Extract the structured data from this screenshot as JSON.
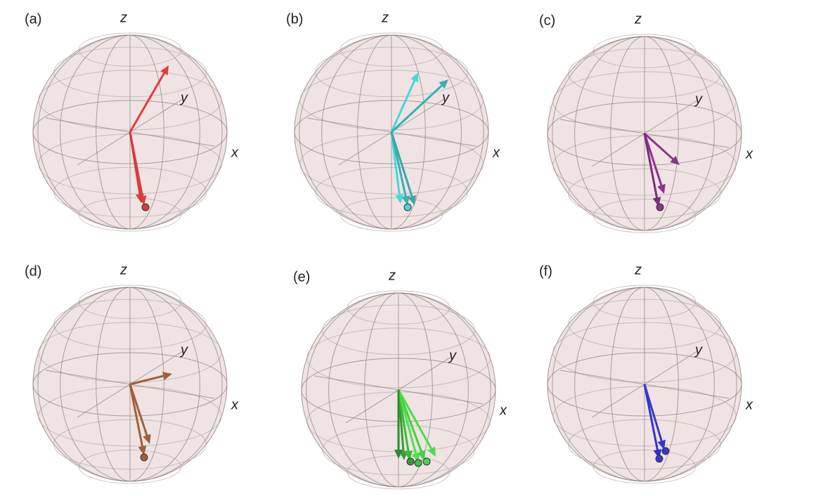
{
  "panels": [
    {
      "label": "(a)",
      "z": "z",
      "y": "y",
      "x": "x"
    },
    {
      "label": "(b)",
      "z": "z",
      "y": "y",
      "x": "x"
    },
    {
      "label": "(c)",
      "z": "z",
      "y": "y",
      "x": "x"
    },
    {
      "label": "(d)",
      "z": "z",
      "y": "y",
      "x": "x"
    },
    {
      "label": "(e)",
      "z": "z",
      "y": "y",
      "x": "x"
    },
    {
      "label": "(f)",
      "z": "z",
      "y": "y",
      "x": "x"
    }
  ]
}
